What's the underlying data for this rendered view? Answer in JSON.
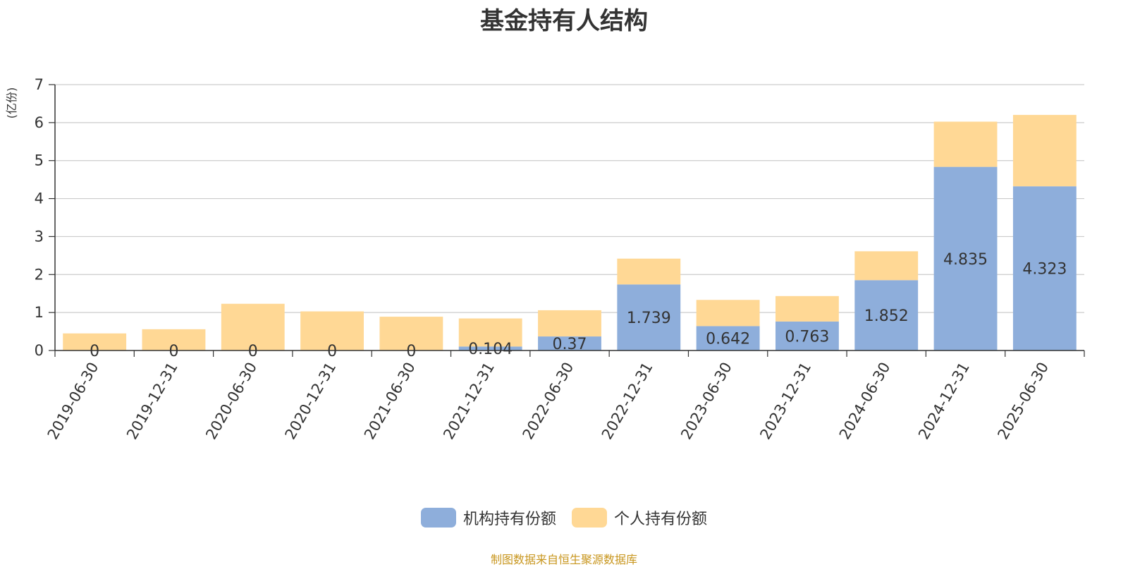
{
  "chart_data": {
    "type": "bar",
    "stacked": true,
    "title": "基金持有人结构",
    "ylabel": "(亿份)",
    "ylim": [
      0,
      7
    ],
    "yticks": [
      0,
      1,
      2,
      3,
      4,
      5,
      6,
      7
    ],
    "grid": true,
    "legend_position": "bottom",
    "categories": [
      "2019-06-30",
      "2019-12-31",
      "2020-06-30",
      "2020-12-31",
      "2021-06-30",
      "2021-12-31",
      "2022-06-30",
      "2022-12-31",
      "2023-06-30",
      "2023-12-31",
      "2024-06-30",
      "2024-12-31",
      "2025-06-30"
    ],
    "series": [
      {
        "name": "机构持有份额",
        "color": "#8eaedb",
        "values": [
          0,
          0,
          0,
          0,
          0,
          0.104,
          0.37,
          1.739,
          0.642,
          0.763,
          1.852,
          4.835,
          4.323
        ],
        "labels": [
          "0",
          "0",
          "0",
          "0",
          "0",
          "0.104",
          "0.37",
          "1.739",
          "0.642",
          "0.763",
          "1.852",
          "4.835",
          "4.323"
        ]
      },
      {
        "name": "个人持有份额",
        "color": "#ffd895",
        "values": [
          0.45,
          0.56,
          1.23,
          1.03,
          0.89,
          0.74,
          0.69,
          0.68,
          0.69,
          0.67,
          0.76,
          1.19,
          1.88
        ]
      }
    ]
  },
  "legend": {
    "items": [
      "机构持有份额",
      "个人持有份额"
    ]
  },
  "footer": {
    "source": "制图数据来自恒生聚源数据库",
    "color": "#c8961e"
  },
  "colors": {
    "ylabel": "#ff0000",
    "grid": "#cccccc",
    "axis": "#333333"
  }
}
